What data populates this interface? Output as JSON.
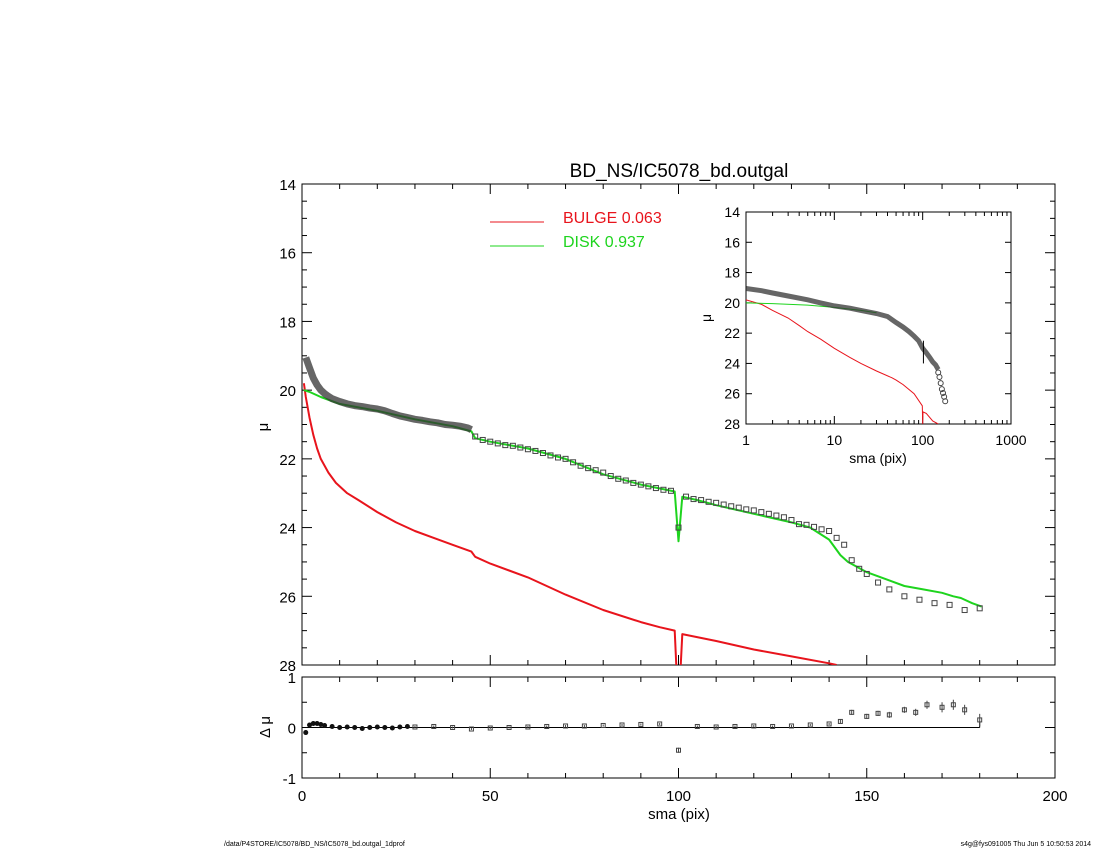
{
  "title": "BD_NS/IC5078_bd.outgal",
  "footer_left": "/data/P4STORE/IC5078/BD_NS/IC5078_bd.outgal_1dprof",
  "footer_right": "s4g@fys091005  Thu Jun  5 10:50:53 2014",
  "legend": [
    {
      "name": "BULGE",
      "value": "0.063",
      "color": "#e8141c"
    },
    {
      "name": "DISK",
      "value": "0.937",
      "color": "#1ed41e"
    }
  ],
  "chart_data": [
    {
      "id": "main",
      "type": "line",
      "xlabel": "",
      "ylabel": "μ",
      "xlim": [
        0,
        200
      ],
      "ylim": [
        28,
        14
      ],
      "y_inverted": true,
      "yticks": [
        "14",
        "16",
        "18",
        "20",
        "22",
        "24",
        "26",
        "28"
      ],
      "series": [
        {
          "name": "BULGE",
          "color": "#e8141c",
          "x": [
            0.5,
            1,
            2,
            3,
            4,
            5,
            7,
            9,
            12,
            15,
            20,
            25,
            30,
            35,
            40,
            45,
            46,
            50,
            55,
            60,
            70,
            80,
            90,
            95,
            99,
            99.5,
            100.5,
            101,
            110,
            120,
            130,
            140,
            142
          ],
          "y": [
            19.8,
            20.2,
            20.8,
            21.3,
            21.7,
            22.0,
            22.4,
            22.7,
            23.0,
            23.2,
            23.55,
            23.85,
            24.1,
            24.3,
            24.5,
            24.7,
            24.85,
            25.05,
            25.25,
            25.45,
            25.95,
            26.4,
            26.75,
            26.9,
            27.0,
            28.2,
            28.2,
            27.1,
            27.3,
            27.55,
            27.75,
            27.95,
            28.0
          ]
        },
        {
          "name": "DISK",
          "color": "#1ed41e",
          "x": [
            0.5,
            2,
            5,
            10,
            20,
            30,
            40,
            45,
            46,
            50,
            60,
            70,
            80,
            90,
            99,
            100,
            101,
            105,
            110,
            120,
            130,
            135,
            140,
            143,
            145,
            150,
            155,
            160,
            165,
            170,
            173,
            175,
            178,
            180.5
          ],
          "y": [
            20.0,
            20.05,
            20.2,
            20.4,
            20.6,
            20.85,
            21.05,
            21.2,
            21.4,
            21.5,
            21.7,
            22.0,
            22.45,
            22.75,
            22.95,
            24.4,
            23.1,
            23.2,
            23.35,
            23.6,
            23.85,
            24.0,
            24.35,
            24.8,
            25.0,
            25.3,
            25.5,
            25.7,
            25.8,
            25.9,
            26.0,
            26.05,
            26.2,
            26.3
          ]
        },
        {
          "name": "",
          "color": "#333333",
          "thick": true,
          "x": [
            1,
            2,
            3,
            4,
            5,
            6,
            7,
            8,
            10,
            12,
            14,
            16,
            18,
            20,
            22,
            24,
            26,
            28,
            30,
            32,
            34,
            36,
            38,
            40,
            42,
            44,
            45
          ],
          "y": [
            19.05,
            19.35,
            19.65,
            19.85,
            20.0,
            20.1,
            20.18,
            20.25,
            20.33,
            20.4,
            20.45,
            20.48,
            20.52,
            20.55,
            20.6,
            20.68,
            20.75,
            20.8,
            20.85,
            20.88,
            20.92,
            20.95,
            21.0,
            21.02,
            21.05,
            21.1,
            21.15
          ]
        }
      ],
      "data_points": {
        "x": [
          46,
          48,
          50,
          52,
          54,
          56,
          58,
          60,
          62,
          64,
          66,
          68,
          70,
          72,
          74,
          76,
          78,
          80,
          82,
          84,
          86,
          88,
          90,
          92,
          94,
          96,
          98,
          100,
          102,
          104,
          106,
          108,
          110,
          112,
          114,
          116,
          118,
          120,
          122,
          124,
          126,
          128,
          130,
          132,
          134,
          136,
          138,
          140,
          142,
          144,
          146,
          148,
          150,
          153,
          156,
          160,
          164,
          168,
          172,
          176,
          180
        ],
        "y": [
          21.35,
          21.45,
          21.5,
          21.55,
          21.6,
          21.62,
          21.67,
          21.72,
          21.77,
          21.83,
          21.9,
          21.96,
          22.0,
          22.1,
          22.2,
          22.27,
          22.33,
          22.4,
          22.5,
          22.58,
          22.63,
          22.7,
          22.75,
          22.8,
          22.85,
          22.9,
          22.93,
          24.0,
          23.1,
          23.17,
          23.2,
          23.25,
          23.28,
          23.33,
          23.38,
          23.42,
          23.47,
          23.5,
          23.55,
          23.6,
          23.65,
          23.7,
          23.78,
          23.9,
          23.92,
          23.98,
          24.05,
          24.1,
          24.3,
          24.5,
          24.95,
          25.2,
          25.35,
          25.6,
          25.8,
          26.0,
          26.1,
          26.2,
          26.25,
          26.4,
          26.35
        ]
      }
    },
    {
      "id": "residual",
      "type": "scatter",
      "xlabel": "sma (pix)",
      "ylabel": "Δ μ",
      "xlim": [
        0,
        200
      ],
      "ylim": [
        -1,
        1
      ],
      "xticks": [
        "0",
        "50",
        "100",
        "150",
        "200"
      ],
      "yticks": [
        "1",
        "0",
        "-1"
      ],
      "x": [
        1,
        2,
        3,
        4,
        5,
        6,
        8,
        10,
        12,
        14,
        16,
        18,
        20,
        22,
        24,
        26,
        28,
        30,
        35,
        40,
        45,
        50,
        55,
        60,
        65,
        70,
        75,
        80,
        85,
        90,
        95,
        100,
        105,
        110,
        115,
        120,
        125,
        130,
        135,
        140,
        143,
        146,
        150,
        153,
        156,
        160,
        163,
        166,
        170,
        173,
        176,
        180
      ],
      "y": [
        -0.1,
        0.05,
        0.08,
        0.08,
        0.06,
        0.04,
        0.02,
        0.0,
        0.01,
        0.0,
        -0.02,
        0.0,
        0.01,
        0.0,
        -0.01,
        0.01,
        0.02,
        0.01,
        0.02,
        0.0,
        -0.03,
        -0.01,
        0.0,
        0.01,
        0.02,
        0.03,
        0.03,
        0.04,
        0.05,
        0.06,
        0.07,
        -0.45,
        0.02,
        0.01,
        0.02,
        0.03,
        0.02,
        0.03,
        0.05,
        0.07,
        0.12,
        0.3,
        0.22,
        0.28,
        0.25,
        0.35,
        0.3,
        0.45,
        0.4,
        0.45,
        0.35,
        0.15
      ],
      "err": [
        0.02,
        0.02,
        0.02,
        0.02,
        0.02,
        0.02,
        0.02,
        0.02,
        0.02,
        0.02,
        0.02,
        0.02,
        0.02,
        0.02,
        0.02,
        0.02,
        0.02,
        0.02,
        0.02,
        0.02,
        0.02,
        0.02,
        0.02,
        0.02,
        0.02,
        0.02,
        0.02,
        0.02,
        0.02,
        0.02,
        0.02,
        0.05,
        0.02,
        0.02,
        0.02,
        0.02,
        0.02,
        0.02,
        0.02,
        0.02,
        0.04,
        0.05,
        0.05,
        0.05,
        0.06,
        0.06,
        0.07,
        0.08,
        0.1,
        0.1,
        0.1,
        0.12
      ]
    },
    {
      "id": "inset",
      "type": "line",
      "xlabel": "sma (pix)",
      "ylabel": "μ",
      "xscale": "log",
      "xlim": [
        1,
        1000
      ],
      "ylim": [
        28,
        14
      ],
      "y_inverted": true,
      "xticks": [
        "1",
        "10",
        "100",
        "1000"
      ],
      "yticks": [
        "14",
        "16",
        "18",
        "20",
        "22",
        "24",
        "26",
        "28"
      ],
      "series": [
        {
          "name": "BULGE",
          "color": "#e8141c",
          "x": [
            1,
            1.5,
            2,
            3,
            4,
            5,
            7,
            10,
            15,
            20,
            30,
            45,
            50,
            60,
            80,
            99,
            100,
            101,
            110,
            130,
            150
          ],
          "y": [
            19.8,
            20.1,
            20.5,
            21.0,
            21.5,
            21.9,
            22.4,
            23.0,
            23.6,
            24.0,
            24.5,
            24.95,
            25.1,
            25.4,
            26.0,
            26.8,
            28.0,
            27.2,
            27.3,
            27.8,
            28.0
          ]
        },
        {
          "name": "DISK",
          "color": "#1ed41e",
          "x": [
            1,
            2,
            5,
            10,
            20,
            30
          ],
          "y": [
            20.0,
            20.05,
            20.15,
            20.3,
            20.5,
            20.65
          ]
        },
        {
          "name": "",
          "color": "#333333",
          "thick": true,
          "x": [
            1,
            1.5,
            2,
            3,
            5,
            7,
            10,
            15,
            20,
            30,
            40,
            50,
            60,
            70,
            80,
            90,
            100,
            110,
            120,
            130,
            140,
            150
          ],
          "y": [
            19.05,
            19.2,
            19.35,
            19.55,
            19.8,
            20.0,
            20.2,
            20.35,
            20.5,
            20.7,
            20.9,
            21.3,
            21.6,
            21.9,
            22.2,
            22.5,
            23.0,
            23.3,
            23.6,
            23.9,
            24.1,
            24.4
          ]
        }
      ],
      "data_points": {
        "x": [
          150,
          155,
          160,
          165,
          170,
          175,
          180
        ],
        "y": [
          24.6,
          24.9,
          25.3,
          25.7,
          25.95,
          26.2,
          26.5
        ]
      }
    }
  ]
}
